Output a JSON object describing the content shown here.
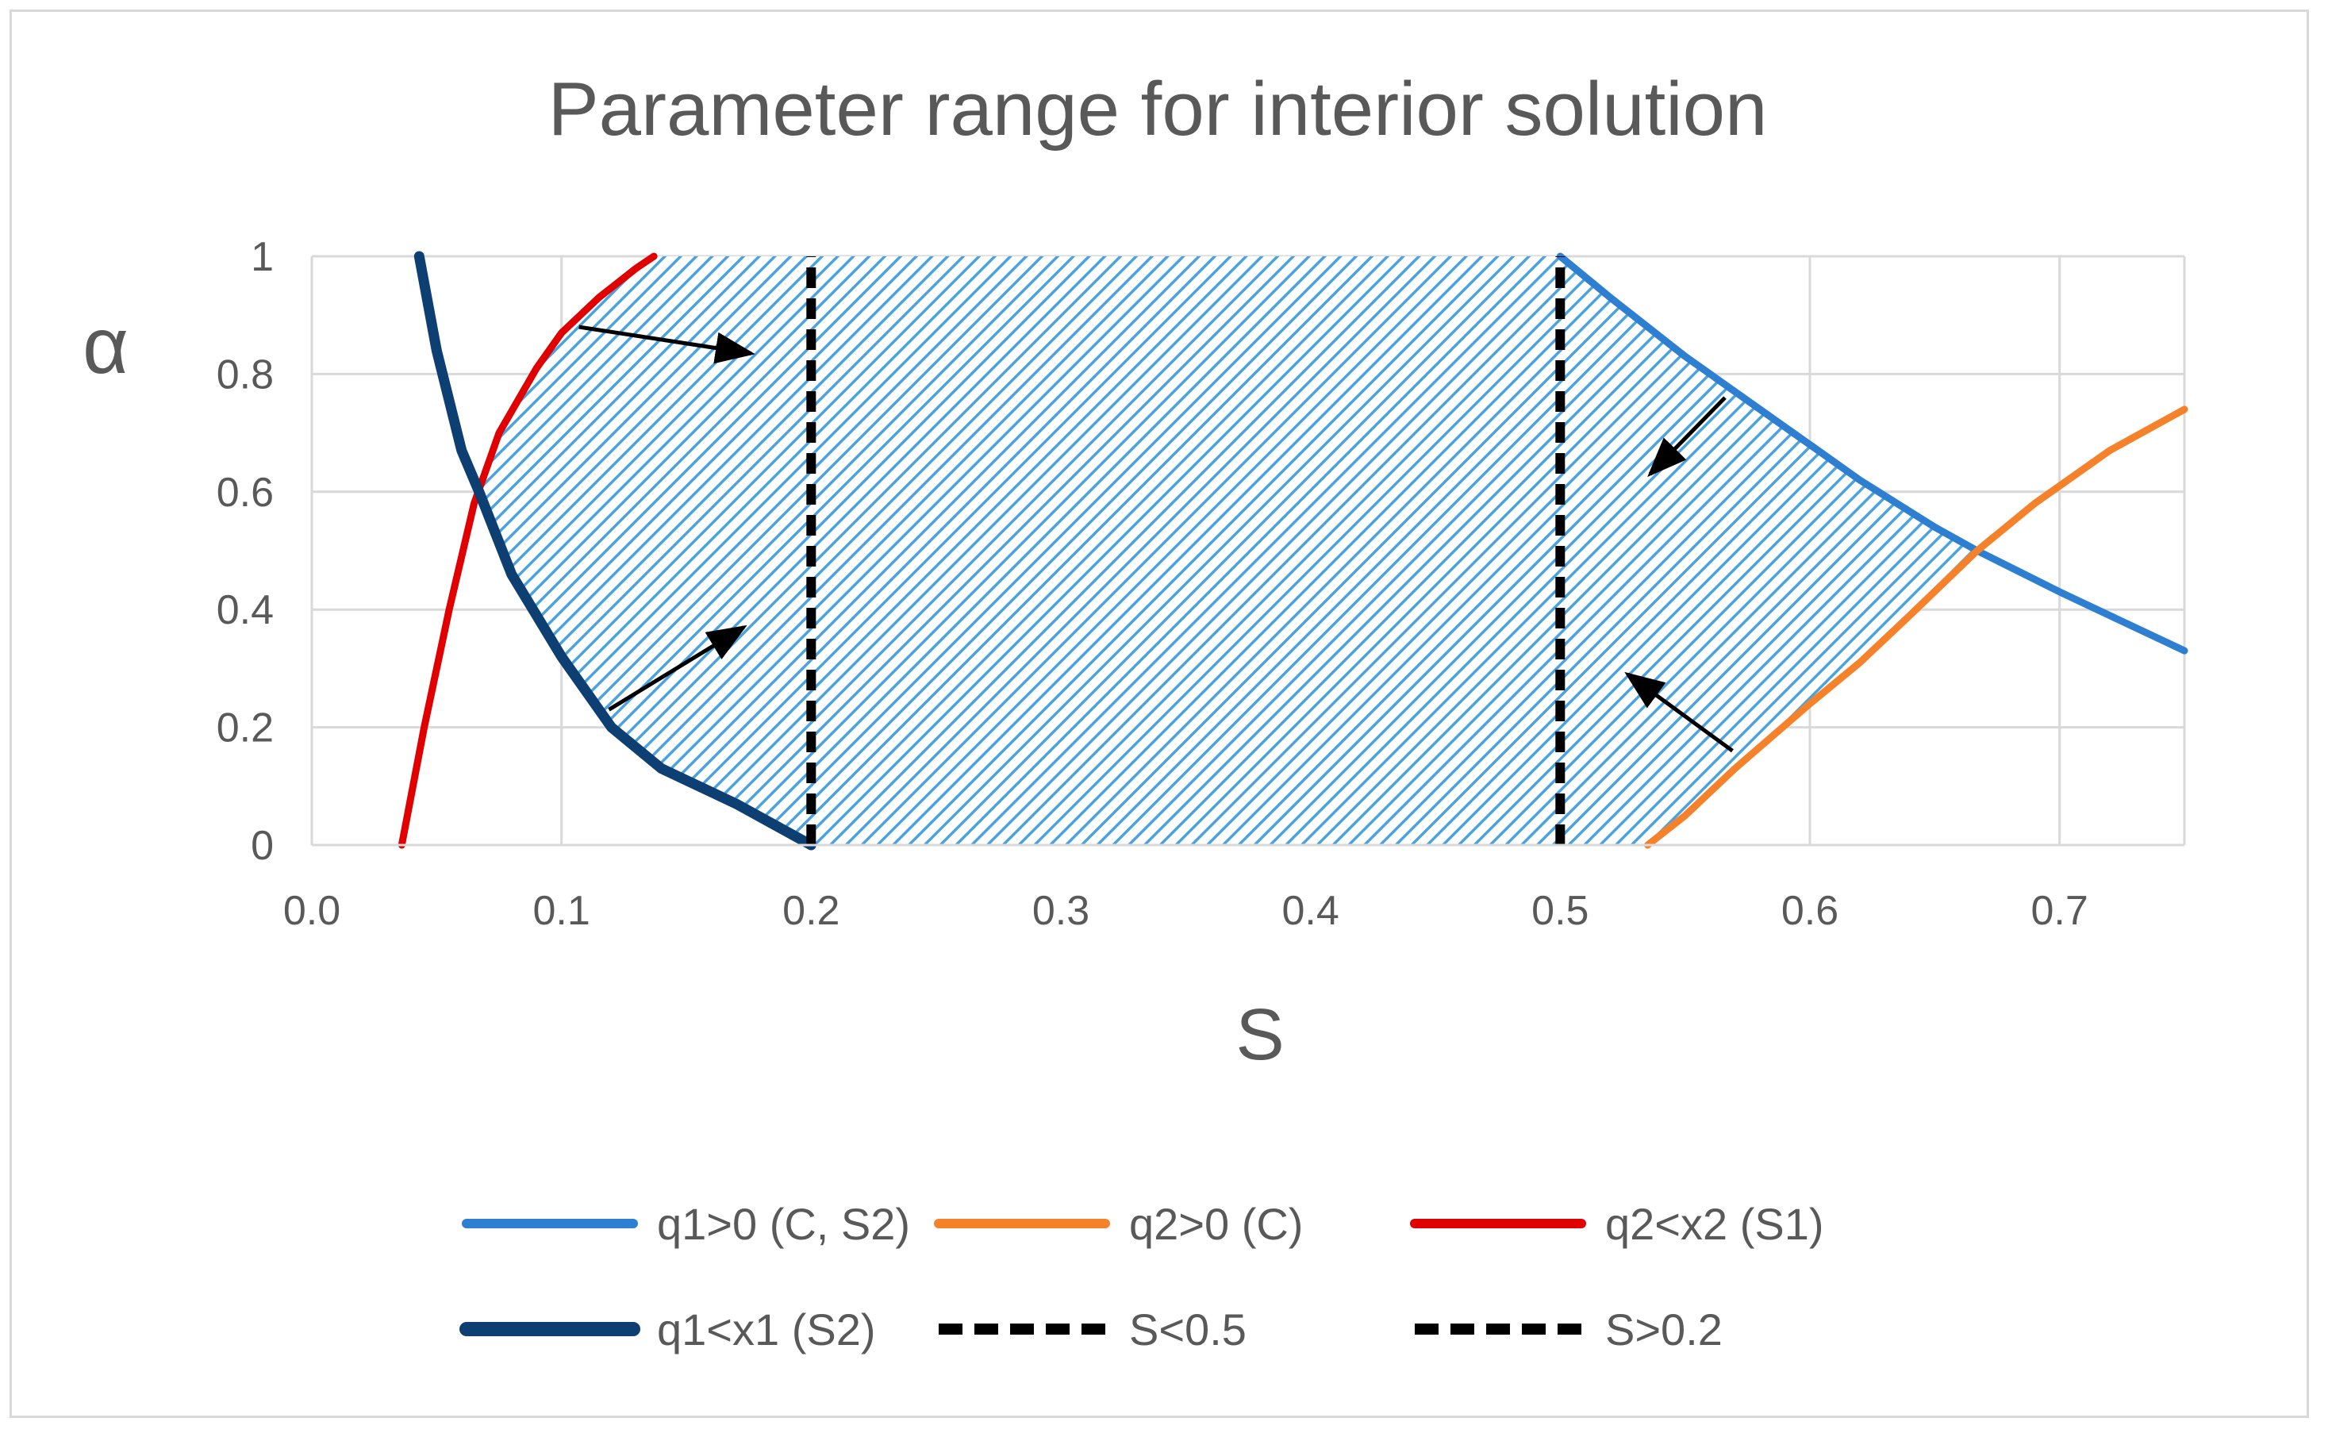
{
  "chart_data": {
    "type": "line",
    "title": "Parameter range for interior solution",
    "xlabel": "S",
    "ylabel": "α",
    "xlim": [
      0.0,
      0.75
    ],
    "ylim": [
      0,
      1
    ],
    "x_ticks": [
      "0.0",
      "0.1",
      "0.2",
      "0.3",
      "0.4",
      "0.5",
      "0.6",
      "0.7"
    ],
    "y_ticks": [
      "0",
      "0.2",
      "0.4",
      "0.6",
      "0.8",
      "1"
    ],
    "grid": true,
    "legend_position": "bottom",
    "shaded_region": "feasible interior solution region bounded by q1<x1 (S2), q2<x2 (S1), q1>0 (C, S2) and q2>0 (C)",
    "series": [
      {
        "name": "q1>0 (C, S2)",
        "color": "#2e7fd1",
        "style": "solid",
        "x": [
          0.5,
          0.52,
          0.55,
          0.58,
          0.6,
          0.62,
          0.65,
          0.667,
          0.7,
          0.72,
          0.75
        ],
        "y": [
          1.0,
          0.93,
          0.83,
          0.74,
          0.68,
          0.62,
          0.54,
          0.5,
          0.43,
          0.39,
          0.33
        ]
      },
      {
        "name": "q2>0 (C)",
        "color": "#f5822a",
        "style": "solid",
        "x": [
          0.535,
          0.55,
          0.57,
          0.6,
          0.62,
          0.64,
          0.667,
          0.69,
          0.72,
          0.75
        ],
        "y": [
          0.0,
          0.05,
          0.13,
          0.24,
          0.31,
          0.39,
          0.5,
          0.58,
          0.67,
          0.74
        ]
      },
      {
        "name": "q2<x2 (S1)",
        "color": "#e00000",
        "style": "solid",
        "x": [
          0.036,
          0.045,
          0.055,
          0.065,
          0.075,
          0.09,
          0.1,
          0.115,
          0.13,
          0.137
        ],
        "y": [
          0.0,
          0.2,
          0.4,
          0.58,
          0.7,
          0.81,
          0.87,
          0.93,
          0.98,
          1.0
        ]
      },
      {
        "name": "q1<x1 (S2)",
        "color": "#0d3f73",
        "style": "solid",
        "x": [
          0.043,
          0.05,
          0.06,
          0.067,
          0.08,
          0.1,
          0.12,
          0.14,
          0.17,
          0.2
        ],
        "y": [
          1.0,
          0.84,
          0.67,
          0.6,
          0.46,
          0.32,
          0.2,
          0.13,
          0.07,
          0.0
        ]
      },
      {
        "name": "S<0.5",
        "color": "#000000",
        "style": "dashed",
        "x": [
          0.5,
          0.5
        ],
        "y": [
          0,
          1
        ]
      },
      {
        "name": "S>0.2",
        "color": "#000000",
        "style": "dashed",
        "x": [
          0.2,
          0.2
        ],
        "y": [
          0,
          1
        ]
      }
    ],
    "arrows": [
      {
        "from": [
          0.107,
          0.88
        ],
        "to": [
          0.176,
          0.835
        ]
      },
      {
        "from": [
          0.119,
          0.23
        ],
        "to": [
          0.173,
          0.37
        ]
      },
      {
        "from": [
          0.566,
          0.76
        ],
        "to": [
          0.536,
          0.63
        ]
      },
      {
        "from": [
          0.569,
          0.16
        ],
        "to": [
          0.527,
          0.29
        ]
      }
    ]
  }
}
